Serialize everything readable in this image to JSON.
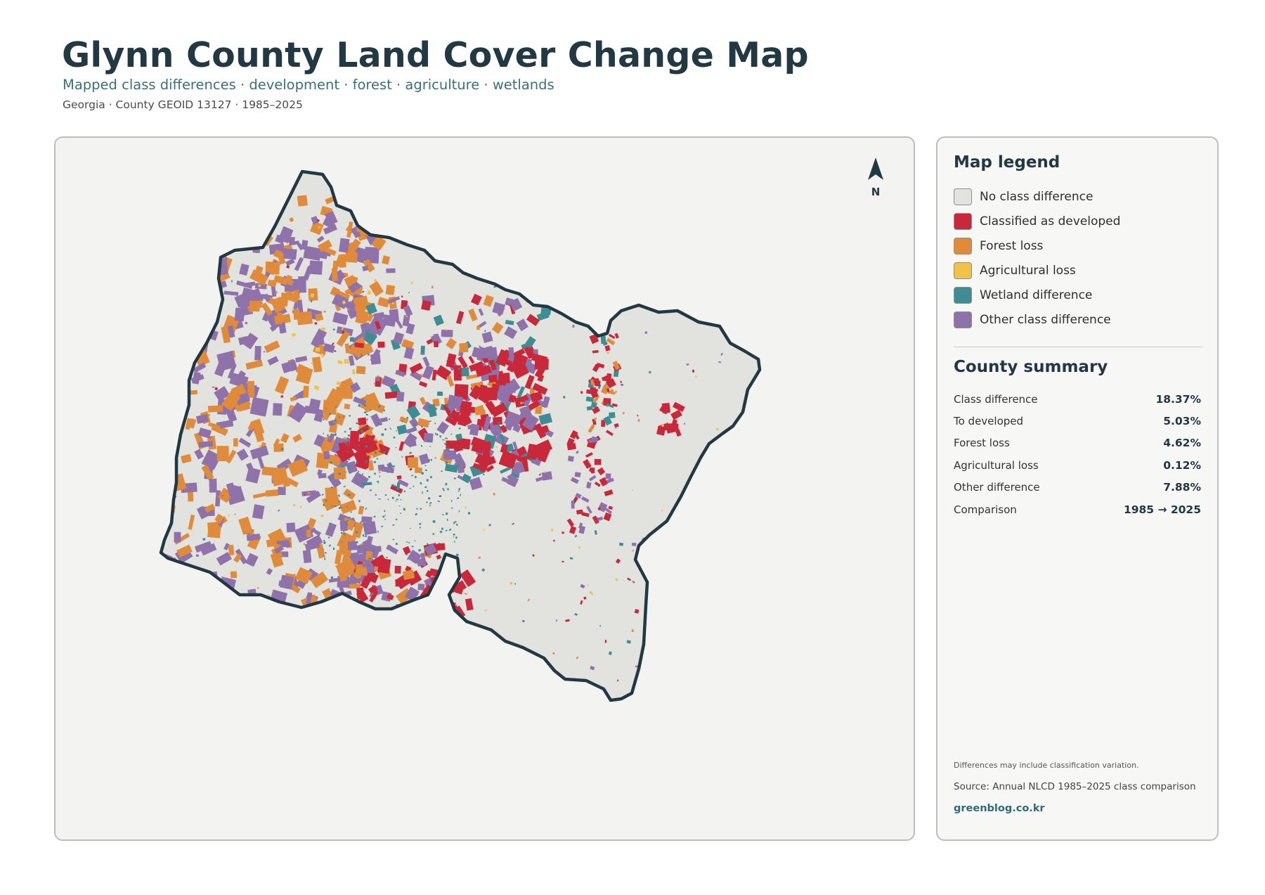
{
  "header": {
    "title": "Glynn County Land Cover Change Map",
    "subtitle": "Mapped class differences · development · forest · agriculture · wetlands",
    "meta": "Georgia · County GEOID 13127 · 1985–2025"
  },
  "map": {
    "north_label": "N",
    "base_color": "#e2e2df",
    "outline_color": "#223843"
  },
  "legend": {
    "title": "Map legend",
    "items": [
      {
        "label": "No class difference",
        "color": "#e2e2df"
      },
      {
        "label": "Classified as developed",
        "color": "#c8283a"
      },
      {
        "label": "Forest loss",
        "color": "#e08b3b"
      },
      {
        "label": "Agricultural loss",
        "color": "#f0c24a"
      },
      {
        "label": "Wetland difference",
        "color": "#3f8c93"
      },
      {
        "label": "Other class difference",
        "color": "#8f72aa"
      }
    ]
  },
  "summary": {
    "title": "County summary",
    "rows": [
      {
        "label": "Class difference",
        "value": "18.37%"
      },
      {
        "label": "To developed",
        "value": "5.03%"
      },
      {
        "label": "Forest loss",
        "value": "4.62%"
      },
      {
        "label": "Agricultural loss",
        "value": "0.12%"
      },
      {
        "label": "Other difference",
        "value": "7.88%"
      },
      {
        "label": "Comparison",
        "value": "1985 → 2025"
      }
    ]
  },
  "footer": {
    "note": "Differences may include classification variation.",
    "source": "Source: Annual NLCD 1985–2025 class comparison",
    "brand": "greenblog.co.kr"
  }
}
